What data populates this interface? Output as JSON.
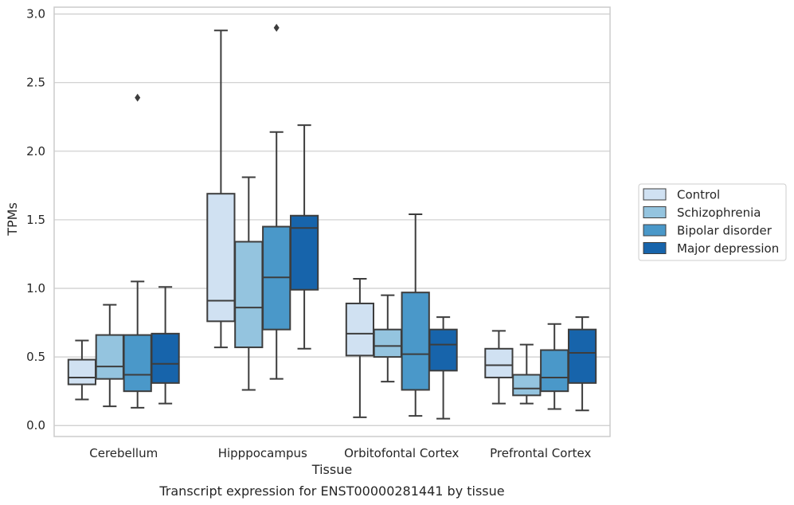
{
  "chart_data": {
    "type": "boxplot",
    "caption": "Transcript expression for ENST00000281441 by tissue",
    "xlabel": "Tissue",
    "ylabel": "TPMs",
    "ylim": [
      -0.08,
      3.05
    ],
    "yticks": [
      "0.0",
      "0.5",
      "1.0",
      "1.5",
      "2.0",
      "2.5",
      "3.0"
    ],
    "grid": "horizontal",
    "legend_position": "right",
    "categories": [
      "Cerebellum",
      "Hipppocampus",
      "Orbitofontal Cortex",
      "Prefrontal Cortex"
    ],
    "series": [
      {
        "name": "Control",
        "color": "#d0e1f2",
        "boxes": [
          {
            "whislo": 0.19,
            "q1": 0.3,
            "med": 0.35,
            "q3": 0.48,
            "whishi": 0.62,
            "fliers": []
          },
          {
            "whislo": 0.57,
            "q1": 0.76,
            "med": 0.91,
            "q3": 1.69,
            "whishi": 2.88,
            "fliers": []
          },
          {
            "whislo": 0.06,
            "q1": 0.51,
            "med": 0.67,
            "q3": 0.89,
            "whishi": 1.07,
            "fliers": []
          },
          {
            "whislo": 0.16,
            "q1": 0.35,
            "med": 0.44,
            "q3": 0.56,
            "whishi": 0.69,
            "fliers": []
          }
        ]
      },
      {
        "name": "Schizophrenia",
        "color": "#94c4df",
        "boxes": [
          {
            "whislo": 0.14,
            "q1": 0.34,
            "med": 0.43,
            "q3": 0.66,
            "whishi": 0.88,
            "fliers": []
          },
          {
            "whislo": 0.26,
            "q1": 0.57,
            "med": 0.86,
            "q3": 1.34,
            "whishi": 1.81,
            "fliers": []
          },
          {
            "whislo": 0.32,
            "q1": 0.5,
            "med": 0.58,
            "q3": 0.7,
            "whishi": 0.95,
            "fliers": []
          },
          {
            "whislo": 0.16,
            "q1": 0.22,
            "med": 0.27,
            "q3": 0.37,
            "whishi": 0.59,
            "fliers": []
          }
        ]
      },
      {
        "name": "Bipolar disorder",
        "color": "#4a98c9",
        "boxes": [
          {
            "whislo": 0.13,
            "q1": 0.25,
            "med": 0.37,
            "q3": 0.66,
            "whishi": 1.05,
            "fliers": [
              2.39
            ]
          },
          {
            "whislo": 0.34,
            "q1": 0.7,
            "med": 1.08,
            "q3": 1.45,
            "whishi": 2.14,
            "fliers": [
              2.9
            ]
          },
          {
            "whislo": 0.07,
            "q1": 0.26,
            "med": 0.52,
            "q3": 0.97,
            "whishi": 1.54,
            "fliers": []
          },
          {
            "whislo": 0.12,
            "q1": 0.25,
            "med": 0.35,
            "q3": 0.55,
            "whishi": 0.74,
            "fliers": []
          }
        ]
      },
      {
        "name": "Major depression",
        "color": "#1764ab",
        "boxes": [
          {
            "whislo": 0.16,
            "q1": 0.31,
            "med": 0.45,
            "q3": 0.67,
            "whishi": 1.01,
            "fliers": []
          },
          {
            "whislo": 0.56,
            "q1": 0.99,
            "med": 1.44,
            "q3": 1.53,
            "whishi": 2.19,
            "fliers": []
          },
          {
            "whislo": 0.05,
            "q1": 0.4,
            "med": 0.59,
            "q3": 0.7,
            "whishi": 0.79,
            "fliers": []
          },
          {
            "whislo": 0.11,
            "q1": 0.31,
            "med": 0.53,
            "q3": 0.7,
            "whishi": 0.79,
            "fliers": []
          }
        ]
      }
    ]
  }
}
